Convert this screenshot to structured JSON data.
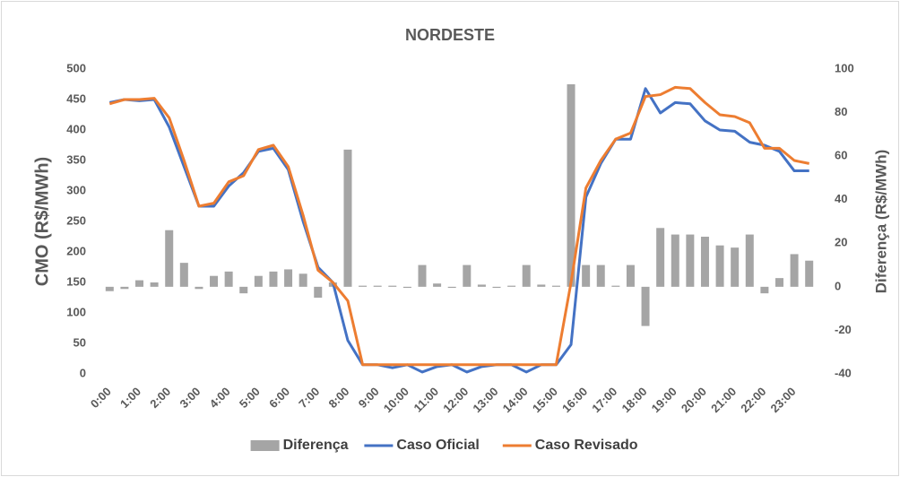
{
  "chart_data": {
    "type": "combo",
    "title": "NORDESTE",
    "y_label": "CMO (R$/MWh)",
    "y2_label": "Diferença (R$/MWh)",
    "categories": [
      "0:00",
      null,
      "1:00",
      null,
      "2:00",
      null,
      "3:00",
      null,
      "4:00",
      null,
      "5:00",
      null,
      "6:00",
      null,
      "7:00",
      null,
      "8:00",
      null,
      "9:00",
      null,
      "10:00",
      null,
      "11:00",
      null,
      "12:00",
      null,
      "13:00",
      null,
      "14:00",
      null,
      "15:00",
      null,
      "16:00",
      null,
      "17:00",
      null,
      "18:00",
      null,
      "19:00",
      null,
      "20:00",
      null,
      "21:00",
      null,
      "22:00",
      null,
      "23:00",
      null
    ],
    "series": [
      {
        "name": "Diferença",
        "kind": "bar",
        "axis": "y2",
        "color": "#a5a5a5",
        "values": [
          -2,
          -1,
          3,
          2,
          26,
          11,
          -1,
          5,
          7,
          -3,
          5,
          7,
          8,
          6,
          -5,
          2,
          63,
          0.5,
          0.5,
          0.5,
          -0.5,
          10,
          1.5,
          -0.5,
          10,
          1,
          -0.5,
          0.5,
          10,
          1,
          0.5,
          93,
          10,
          10,
          0.5,
          10,
          -18,
          27,
          24,
          24,
          23,
          19,
          18,
          24,
          -3,
          4,
          15,
          12
        ]
      },
      {
        "name": "Caso Oficial",
        "kind": "line",
        "color": "#4472c4",
        "values": [
          445,
          450,
          448,
          450,
          405,
          340,
          275,
          275,
          308,
          330,
          365,
          370,
          335,
          250,
          175,
          150,
          55,
          15,
          15,
          10,
          15,
          3,
          12,
          15,
          3,
          12,
          15,
          15,
          3,
          15,
          15,
          48,
          290,
          345,
          385,
          385,
          468,
          428,
          445,
          443,
          415,
          400,
          398,
          380,
          375,
          365,
          333,
          333
        ]
      },
      {
        "name": "Caso Revisado",
        "kind": "line",
        "color": "#ed7d31",
        "values": [
          443,
          450,
          450,
          452,
          420,
          350,
          275,
          280,
          315,
          325,
          368,
          375,
          340,
          260,
          170,
          150,
          120,
          15,
          15,
          15,
          15,
          15,
          15,
          15,
          15,
          15,
          15,
          15,
          15,
          15,
          15,
          150,
          305,
          350,
          385,
          395,
          455,
          458,
          470,
          468,
          445,
          425,
          422,
          412,
          370,
          370,
          350,
          345
        ]
      }
    ],
    "ylim": [
      0,
      500
    ],
    "yticks": [
      0,
      50,
      100,
      150,
      200,
      250,
      300,
      350,
      400,
      450,
      500
    ],
    "y2lim": [
      -40,
      100
    ],
    "y2ticks": [
      -40,
      -20,
      0,
      20,
      40,
      60,
      80,
      100
    ],
    "legend": "bottom"
  }
}
